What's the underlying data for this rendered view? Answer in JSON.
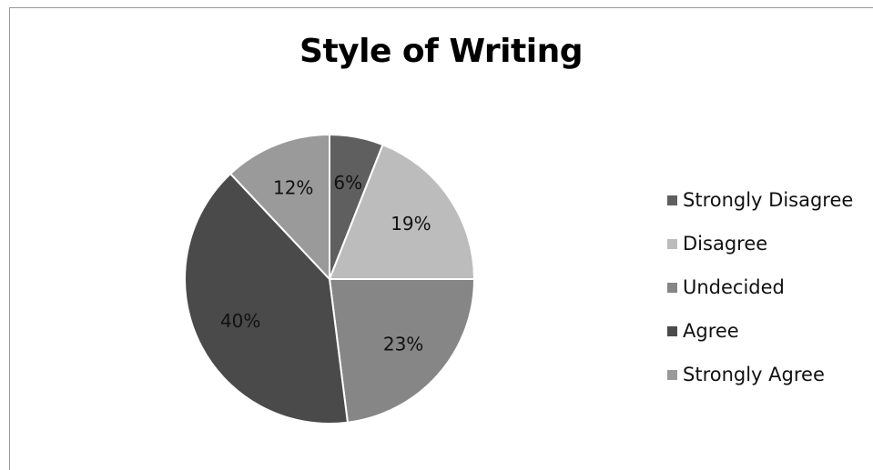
{
  "chart_data": {
    "type": "pie",
    "title": "Style of Writing",
    "categories": [
      "Strongly Disagree",
      "Disagree",
      "Undecided",
      "Agree",
      "Strongly Agree"
    ],
    "values": [
      6,
      19,
      23,
      40,
      12
    ],
    "labels": [
      "6%",
      "19%",
      "23%",
      "40%",
      "12%"
    ],
    "colors": [
      "#5f5f5f",
      "#bcbcbc",
      "#868686",
      "#4a4a4a",
      "#9a9a9a"
    ],
    "legend_position": "right",
    "start_angle": "top, clockwise"
  }
}
